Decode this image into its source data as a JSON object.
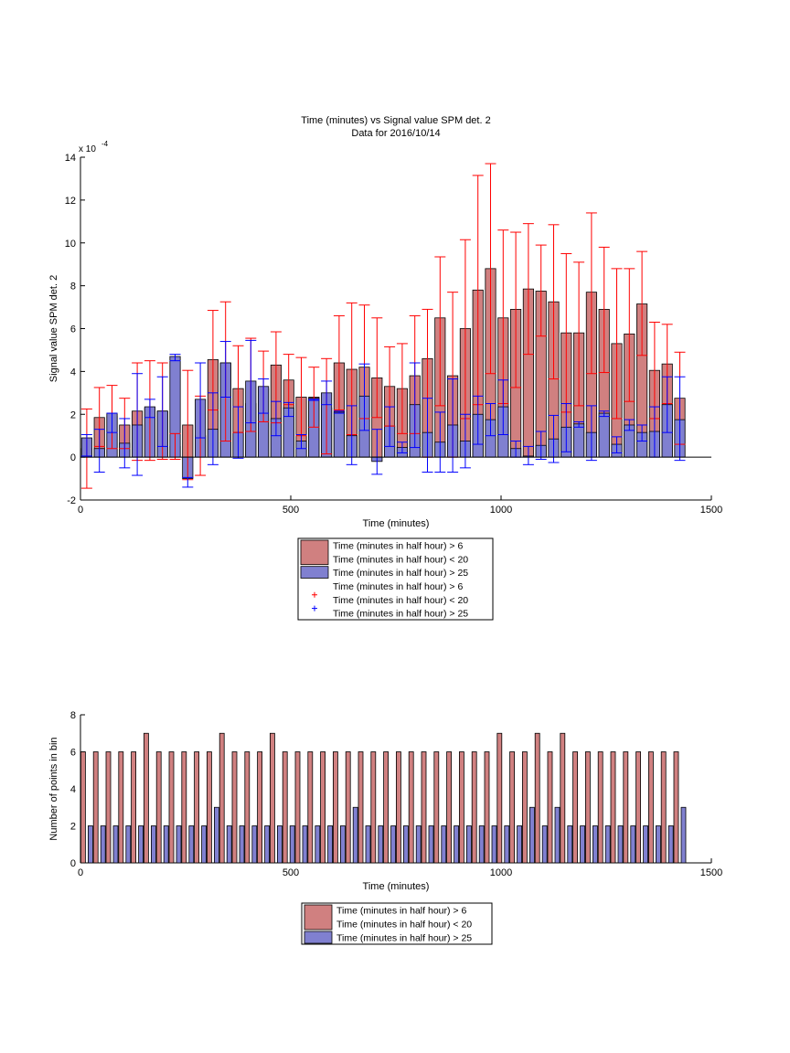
{
  "chart_data": [
    {
      "type": "bar",
      "title": "Time (minutes) vs Signal value SPM det. 2",
      "subtitle": "Data for 2016/10/14",
      "xlabel": "Time (minutes)",
      "ylabel": "Signal value SPM det. 2",
      "y_exponent_label": "x 10",
      "y_exponent_power": "-4",
      "xlim": [
        0,
        1500
      ],
      "ylim": [
        -2,
        14
      ],
      "xticks": [
        0,
        500,
        1000,
        1500
      ],
      "yticks": [
        -2,
        0,
        2,
        4,
        6,
        8,
        10,
        12,
        14
      ],
      "grid": false,
      "legend_position": "below",
      "colors": {
        "red_bar": "#d08080",
        "blue_bar": "#8080d0",
        "red_err": "#ff0000",
        "blue_err": "#0000ff"
      },
      "legend": [
        {
          "kind": "bar",
          "color": "red",
          "label": "Time (minutes in half hour) > 6"
        },
        {
          "kind": "bar",
          "color": "red",
          "label": "Time (minutes in half hour) < 20"
        },
        {
          "kind": "bar",
          "color": "blue",
          "label": "Time (minutes in half hour) > 25"
        },
        {
          "kind": "marker",
          "color": "red",
          "label": "Time (minutes in half hour) > 6"
        },
        {
          "kind": "marker",
          "color": "red",
          "label": "Time (minutes in half hour) < 20"
        },
        {
          "kind": "marker",
          "color": "blue",
          "label": "Time (minutes in half hour) > 25"
        }
      ],
      "x": [
        15,
        45,
        75,
        105,
        135,
        165,
        195,
        225,
        255,
        285,
        315,
        345,
        375,
        405,
        435,
        465,
        495,
        525,
        555,
        585,
        615,
        645,
        675,
        705,
        735,
        765,
        795,
        825,
        855,
        885,
        915,
        945,
        975,
        1005,
        1035,
        1065,
        1095,
        1125,
        1155,
        1185,
        1215,
        1245,
        1275,
        1305,
        1335,
        1365,
        1395,
        1425
      ],
      "series": [
        {
          "name": "Time (minutes in half hour) > 6 / < 20",
          "color": "red",
          "values": [
            0.4,
            1.85,
            1.9,
            1.5,
            2.15,
            2.3,
            2.15,
            0.5,
            1.5,
            1.0,
            4.55,
            4.4,
            3.2,
            2.5,
            3.2,
            4.3,
            3.6,
            2.8,
            2.8,
            2.3,
            4.4,
            4.1,
            4.2,
            3.7,
            3.3,
            3.2,
            3.8,
            4.6,
            6.5,
            3.8,
            6.0,
            7.8,
            8.8,
            6.5,
            6.9,
            7.85,
            7.75,
            7.25,
            5.8,
            5.8,
            7.7,
            6.9,
            5.3,
            5.75,
            7.15,
            4.05,
            4.35,
            2.75
          ],
          "err_low": [
            -1.45,
            0.5,
            0.4,
            0.4,
            -0.15,
            -0.15,
            -0.1,
            -0.1,
            -1.05,
            -0.85,
            2.2,
            0.75,
            1.15,
            1.2,
            1.65,
            1.6,
            2.45,
            1.0,
            1.4,
            0.15,
            2.2,
            1.05,
            1.8,
            1.85,
            1.45,
            1.1,
            1.1,
            0.0,
            2.4,
            0.0,
            1.8,
            2.45,
            3.9,
            2.5,
            3.25,
            4.8,
            5.65,
            3.65,
            2.1,
            2.4,
            3.9,
            3.95,
            1.8,
            2.6,
            4.75,
            1.8,
            2.5,
            0.6
          ],
          "err_high": [
            2.25,
            3.25,
            3.35,
            2.75,
            4.4,
            4.5,
            4.4,
            1.1,
            4.05,
            2.85,
            6.85,
            7.25,
            5.2,
            5.55,
            4.95,
            5.85,
            4.8,
            4.65,
            4.2,
            4.6,
            6.6,
            7.2,
            7.1,
            6.5,
            5.15,
            5.3,
            6.6,
            6.9,
            9.35,
            7.7,
            10.15,
            13.15,
            13.7,
            10.6,
            10.5,
            10.9,
            9.9,
            10.85,
            9.5,
            9.1,
            11.4,
            9.8,
            8.8,
            8.8,
            9.6,
            6.3,
            6.2,
            4.9
          ]
        },
        {
          "name": "Time (minutes in half hour) > 25",
          "color": "blue",
          "values": [
            0.9,
            0.4,
            2.05,
            0.65,
            1.5,
            2.35,
            2.15,
            4.7,
            -1.0,
            2.7,
            1.3,
            4.4,
            1.15,
            3.55,
            3.3,
            1.8,
            2.3,
            0.75,
            2.75,
            3.0,
            2.1,
            1.0,
            2.85,
            -0.2,
            1.45,
            0.45,
            2.45,
            1.15,
            0.7,
            1.5,
            0.75,
            2.0,
            1.75,
            2.35,
            0.4,
            0.05,
            0.55,
            0.85,
            1.4,
            1.55,
            1.15,
            2.05,
            0.6,
            1.5,
            1.15,
            1.2,
            2.45,
            1.75
          ],
          "err_low": [
            0.05,
            -0.7,
            1.15,
            -0.5,
            -0.85,
            1.85,
            0.5,
            4.5,
            -1.4,
            0.9,
            -0.35,
            2.8,
            -0.05,
            1.6,
            2.05,
            1.0,
            1.9,
            0.4,
            2.65,
            2.45,
            2.05,
            -0.35,
            1.25,
            -0.8,
            0.5,
            0.2,
            0.45,
            -0.7,
            -0.7,
            -0.7,
            -0.5,
            0.6,
            1.0,
            1.05,
            0.0,
            -0.35,
            -0.1,
            -0.25,
            0.25,
            1.4,
            -0.15,
            1.9,
            0.2,
            1.25,
            0.75,
            0.0,
            1.15,
            -0.15
          ],
          "err_high": [
            1.05,
            1.3,
            2.05,
            1.8,
            3.9,
            2.7,
            3.75,
            4.8,
            -0.95,
            4.4,
            3.0,
            5.4,
            2.35,
            5.45,
            3.65,
            2.6,
            2.55,
            1.05,
            2.7,
            3.55,
            2.15,
            2.4,
            4.35,
            1.3,
            2.35,
            0.7,
            4.4,
            2.75,
            2.1,
            3.65,
            2.0,
            2.85,
            2.5,
            3.6,
            0.75,
            0.5,
            1.2,
            1.95,
            2.5,
            1.65,
            2.4,
            2.15,
            0.95,
            1.75,
            1.5,
            2.35,
            3.75,
            3.75
          ]
        }
      ]
    },
    {
      "type": "bar",
      "title": "",
      "xlabel": "Time (minutes)",
      "ylabel": "Number of points in bin",
      "xlim": [
        0,
        1500
      ],
      "ylim": [
        0,
        8
      ],
      "xticks": [
        0,
        500,
        1000,
        1500
      ],
      "yticks": [
        0,
        2,
        4,
        6,
        8
      ],
      "grid": false,
      "legend_position": "below",
      "legend": [
        {
          "kind": "bar",
          "color": "red",
          "label": "Time (minutes in half hour) > 6"
        },
        {
          "kind": "bar",
          "color": "red",
          "label": "Time (minutes in half hour) < 20"
        },
        {
          "kind": "bar",
          "color": "blue",
          "label": "Time (minutes in half hour) > 25"
        }
      ],
      "x": [
        15,
        45,
        75,
        105,
        135,
        165,
        195,
        225,
        255,
        285,
        315,
        345,
        375,
        405,
        435,
        465,
        495,
        525,
        555,
        585,
        615,
        645,
        675,
        705,
        735,
        765,
        795,
        825,
        855,
        885,
        915,
        945,
        975,
        1005,
        1035,
        1065,
        1095,
        1125,
        1155,
        1185,
        1215,
        1245,
        1275,
        1305,
        1335,
        1365,
        1395,
        1425
      ],
      "series": [
        {
          "name": "Time (minutes in half hour) > 6 / < 20",
          "color": "red",
          "values": [
            6,
            6,
            6,
            6,
            6,
            7,
            6,
            6,
            6,
            6,
            6,
            7,
            6,
            6,
            6,
            7,
            6,
            6,
            6,
            6,
            6,
            6,
            6,
            6,
            6,
            6,
            6,
            6,
            6,
            6,
            6,
            6,
            6,
            7,
            6,
            6,
            7,
            6,
            7,
            6,
            6,
            6,
            6,
            6,
            6,
            6,
            6,
            6
          ]
        },
        {
          "name": "Time (minutes in half hour) > 25",
          "color": "blue",
          "values": [
            2,
            2,
            2,
            2,
            2,
            2,
            2,
            2,
            2,
            2,
            3,
            2,
            2,
            2,
            2,
            2,
            2,
            2,
            2,
            2,
            2,
            3,
            2,
            2,
            2,
            2,
            2,
            2,
            2,
            2,
            2,
            2,
            2,
            2,
            2,
            3,
            2,
            3,
            2,
            2,
            2,
            2,
            2,
            2,
            2,
            2,
            2,
            3
          ]
        }
      ]
    }
  ]
}
